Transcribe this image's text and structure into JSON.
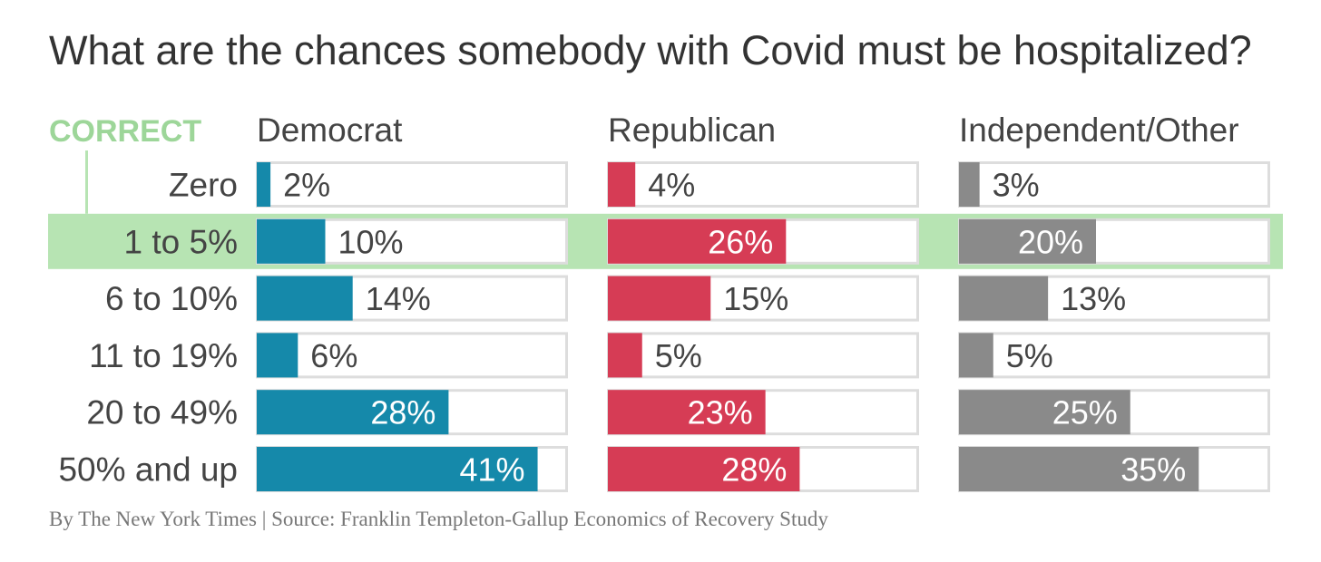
{
  "title": "What are the chances somebody with Covid must be hospitalized?",
  "source": "By The New York Times | Source: Franklin Templeton-Gallup Economics of Recovery Study",
  "correct_label": "CORRECT",
  "colors": {
    "Democrat": "#1589aa",
    "Republican": "#d63c55",
    "Independent/Other": "#8a8a8a",
    "highlight": "#b7e4b3",
    "correct_text": "#9dd699",
    "track_border": "#dddddd",
    "label": "#444444"
  },
  "chart_data": {
    "type": "bar",
    "orientation": "horizontal",
    "title": "What are the chances somebody with Covid must be hospitalized?",
    "categories": [
      "Zero",
      "1 to 5%",
      "6 to 10%",
      "11 to 19%",
      "20 to 49%",
      "50% and up"
    ],
    "correct_category": "1 to 5%",
    "xlim": [
      0,
      100
    ],
    "series": [
      {
        "name": "Democrat",
        "values": [
          2,
          10,
          14,
          6,
          28,
          41
        ],
        "labels": [
          "2%",
          "10%",
          "14%",
          "6%",
          "28%",
          "41%"
        ]
      },
      {
        "name": "Republican",
        "values": [
          4,
          26,
          15,
          5,
          23,
          28
        ],
        "labels": [
          "4%",
          "26%",
          "15%",
          "5%",
          "23%",
          "28%"
        ]
      },
      {
        "name": "Independent/Other",
        "values": [
          3,
          20,
          13,
          5,
          25,
          35
        ],
        "labels": [
          "3%",
          "20%",
          "13%",
          "5%",
          "25%",
          "35%"
        ]
      }
    ]
  }
}
